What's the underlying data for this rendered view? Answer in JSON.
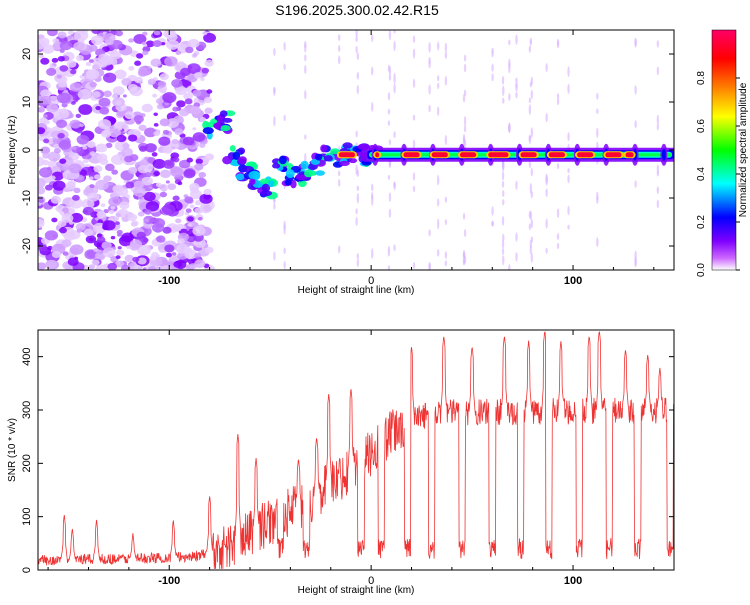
{
  "title": "S196.2025.300.02.42.R15",
  "chart_data": [
    {
      "type": "heatmap",
      "name": "spectrogram",
      "xlabel": "Height of straight line (km)",
      "ylabel": "Frequency (Hz)",
      "xlim": [
        -165,
        150
      ],
      "ylim": [
        -25,
        25
      ],
      "xticks": [
        -100,
        0,
        100
      ],
      "xtick_labels": [
        "-100",
        "0",
        "100"
      ],
      "yticks": [
        20,
        10,
        0,
        -10,
        -20
      ],
      "ytick_labels": [
        "20",
        "10",
        "0",
        "-10",
        "-20"
      ],
      "colorbar": {
        "label": "Normalized spectral amplitude",
        "range": [
          0,
          1
        ],
        "ticks": [
          0.0,
          0.2,
          0.4,
          0.6,
          0.8
        ],
        "tick_labels": [
          "0.0",
          "0.2",
          "0.4",
          "0.6",
          "0.8"
        ],
        "colors": [
          "#ffffff",
          "#cc66ff",
          "#7f00ff",
          "#0000ff",
          "#00ffff",
          "#00ff00",
          "#ffff00",
          "#ff8000",
          "#ff0000",
          "#ff0066"
        ]
      },
      "features": {
        "noise_region_x": [
          -165,
          -80
        ],
        "noise_freq_range": [
          -25,
          25
        ],
        "scatter_segment": [
          [
            -78,
            5
          ],
          [
            -72,
            6
          ],
          [
            -68,
            -1
          ],
          [
            -62,
            -4
          ],
          [
            -56,
            -6
          ],
          [
            -50,
            -8
          ],
          [
            -44,
            -4
          ],
          [
            -38,
            -6
          ],
          [
            -32,
            -5
          ],
          [
            -26,
            -3
          ],
          [
            -20,
            -1.5
          ],
          [
            -12,
            -1
          ],
          [
            -4,
            -1
          ],
          [
            0,
            -1
          ]
        ],
        "line_freq": -1,
        "line_x": [
          0,
          150
        ],
        "hot_segments": [
          [
            -16,
            -8
          ],
          [
            2,
            4
          ],
          [
            16,
            24
          ],
          [
            30,
            38
          ],
          [
            44,
            52
          ],
          [
            58,
            68
          ],
          [
            74,
            82
          ],
          [
            88,
            96
          ],
          [
            102,
            110
          ],
          [
            116,
            124
          ],
          [
            126,
            130
          ]
        ]
      }
    },
    {
      "type": "line",
      "name": "snr",
      "xlabel": "Height of straight line (km)",
      "ylabel": "SNR (10 * v/v)",
      "xlim": [
        -165,
        150
      ],
      "ylim": [
        0,
        450
      ],
      "xticks": [
        -100,
        0,
        100
      ],
      "xtick_labels": [
        "-100",
        "0",
        "100"
      ],
      "yticks": [
        0,
        100,
        200,
        300,
        400
      ],
      "ytick_labels": [
        "0",
        "100",
        "200",
        "300",
        "400"
      ],
      "line_color": "#ee3333",
      "profile": [
        {
          "x": -165,
          "y": 18
        },
        {
          "x": -140,
          "y": 20
        },
        {
          "x": -110,
          "y": 22
        },
        {
          "x": -90,
          "y": 25
        },
        {
          "x": -80,
          "y": 30
        },
        {
          "x": -70,
          "y": 45
        },
        {
          "x": -60,
          "y": 70
        },
        {
          "x": -50,
          "y": 90
        },
        {
          "x": -40,
          "y": 110
        },
        {
          "x": -30,
          "y": 130
        },
        {
          "x": -20,
          "y": 160
        },
        {
          "x": -10,
          "y": 190
        },
        {
          "x": 0,
          "y": 220
        },
        {
          "x": 10,
          "y": 255
        },
        {
          "x": 20,
          "y": 280
        },
        {
          "x": 30,
          "y": 295
        },
        {
          "x": 150,
          "y": 300
        }
      ],
      "spikes": [
        {
          "x": -152,
          "y": 105
        },
        {
          "x": -148,
          "y": 80
        },
        {
          "x": -136,
          "y": 95
        },
        {
          "x": -118,
          "y": 70
        },
        {
          "x": -98,
          "y": 95
        },
        {
          "x": -80,
          "y": 140
        },
        {
          "x": -66,
          "y": 255
        },
        {
          "x": -57,
          "y": 210
        },
        {
          "x": -46,
          "y": 205
        },
        {
          "x": -36,
          "y": 210
        },
        {
          "x": -27,
          "y": 250
        },
        {
          "x": -21,
          "y": 330
        },
        {
          "x": -10,
          "y": 340
        },
        {
          "x": 5,
          "y": 330
        },
        {
          "x": 20,
          "y": 420
        },
        {
          "x": 36,
          "y": 440
        },
        {
          "x": 50,
          "y": 420
        },
        {
          "x": 60,
          "y": 445
        },
        {
          "x": 66,
          "y": 440
        },
        {
          "x": 78,
          "y": 430
        },
        {
          "x": 86,
          "y": 450
        },
        {
          "x": 94,
          "y": 430
        },
        {
          "x": 108,
          "y": 440
        },
        {
          "x": 113,
          "y": 450
        },
        {
          "x": 126,
          "y": 415
        },
        {
          "x": 137,
          "y": 405
        },
        {
          "x": 143,
          "y": 380
        }
      ],
      "dips": [
        -45,
        -32,
        -5,
        5,
        18,
        30,
        45,
        60,
        74,
        88,
        103,
        118,
        132,
        148
      ]
    }
  ]
}
